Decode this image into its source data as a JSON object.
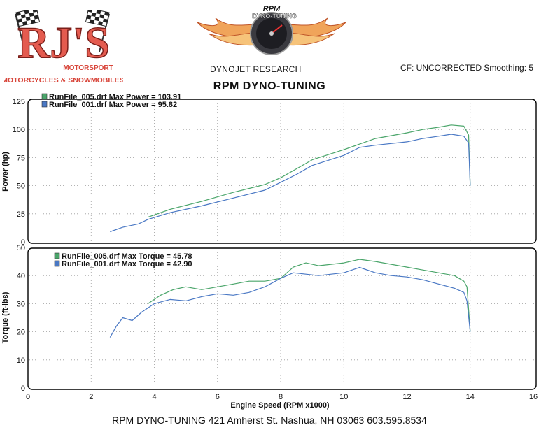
{
  "header": {
    "logo_left": {
      "main": "RJ'S",
      "sub1": "MOTORSPORT",
      "sub2": "MOTORCYCLES & SNOWMOBILES"
    },
    "logo_center": {
      "top": "RPM",
      "arc": "DYNO-TUNING"
    },
    "company": "DYNOJET RESEARCH",
    "cf": "CF: UNCORRECTED  Smoothing: 5",
    "title": "RPM DYNO-TUNING"
  },
  "footer": "RPM DYNO-TUNING  421 Amherst St. Nashua, NH 03063  603.595.8534",
  "colors": {
    "run005": "#4aa56a",
    "run001": "#4a78c4",
    "grid": "#9a9a9a",
    "frame": "#000000"
  },
  "chart_data": [
    {
      "type": "line",
      "ylabel": "Power (hp)",
      "xlim": [
        0,
        16
      ],
      "ylim": [
        0,
        125
      ],
      "yticks": [
        0,
        25,
        50,
        75,
        100,
        125
      ],
      "grid": true,
      "legend": "top-left",
      "legend_entries": [
        "RunFile_005.drf Max Power = 103.91",
        "RunFile_001.drf Max Power = 95.82"
      ],
      "series": [
        {
          "name": "RunFile_005.drf",
          "color": "#4aa56a",
          "x": [
            3.8,
            4.5,
            5.5,
            6.5,
            7.5,
            8.0,
            8.5,
            9.0,
            10.0,
            11.0,
            12.0,
            12.5,
            13.0,
            13.4,
            13.8,
            13.95,
            14.0
          ],
          "y": [
            22,
            29,
            36,
            44,
            51,
            57,
            65,
            73,
            82,
            92,
            97,
            100,
            102,
            104,
            103,
            95,
            50
          ]
        },
        {
          "name": "RunFile_001.drf",
          "color": "#4a78c4",
          "x": [
            2.6,
            3.0,
            3.5,
            3.8,
            4.5,
            5.5,
            6.5,
            7.5,
            8.0,
            8.5,
            9.0,
            10.0,
            10.5,
            11.0,
            12.0,
            12.5,
            13.0,
            13.4,
            13.8,
            13.95,
            14.0
          ],
          "y": [
            9,
            13,
            16,
            20,
            26,
            32,
            39,
            46,
            53,
            60,
            68,
            77,
            84,
            86,
            89,
            92,
            94,
            95.8,
            94,
            88,
            50
          ]
        }
      ]
    },
    {
      "type": "line",
      "xlabel": "Engine Speed (RPM x1000)",
      "ylabel": "Torque (ft-lbs)",
      "xlim": [
        0,
        16
      ],
      "ylim": [
        0,
        50
      ],
      "xticks": [
        0,
        2,
        4,
        6,
        8,
        10,
        12,
        14,
        16
      ],
      "yticks": [
        0,
        10,
        20,
        30,
        40,
        50
      ],
      "grid": true,
      "legend": "top-left",
      "legend_entries": [
        "RunFile_005.drf Max Torque = 45.78",
        "RunFile_001.drf Max Torque = 42.90"
      ],
      "series": [
        {
          "name": "RunFile_005.drf",
          "color": "#4aa56a",
          "x": [
            3.8,
            4.2,
            4.6,
            5.0,
            5.5,
            6.0,
            6.5,
            7.0,
            7.5,
            8.0,
            8.4,
            8.8,
            9.2,
            9.6,
            10.0,
            10.5,
            11.0,
            11.5,
            12.0,
            12.5,
            13.0,
            13.5,
            13.8,
            13.9,
            14.0
          ],
          "y": [
            30,
            33,
            35,
            36,
            35,
            36,
            37,
            38,
            38,
            39,
            43,
            44.5,
            43.5,
            44,
            44.5,
            45.78,
            45,
            44,
            43,
            42,
            41,
            40,
            38,
            36,
            20
          ]
        },
        {
          "name": "RunFile_001.drf",
          "color": "#4a78c4",
          "x": [
            2.6,
            2.8,
            3.0,
            3.3,
            3.6,
            4.0,
            4.5,
            5.0,
            5.5,
            6.0,
            6.5,
            7.0,
            7.5,
            8.0,
            8.4,
            8.8,
            9.2,
            9.6,
            10.0,
            10.5,
            11.0,
            11.5,
            12.0,
            12.5,
            13.0,
            13.5,
            13.8,
            13.9,
            14.0
          ],
          "y": [
            18,
            22,
            25,
            24,
            27,
            30,
            31.5,
            31,
            32.5,
            33.5,
            33,
            34,
            36,
            39,
            41,
            40.5,
            40,
            40.5,
            41,
            42.9,
            41,
            40,
            39.5,
            38.5,
            37,
            35.5,
            34,
            31,
            20
          ]
        }
      ]
    }
  ]
}
